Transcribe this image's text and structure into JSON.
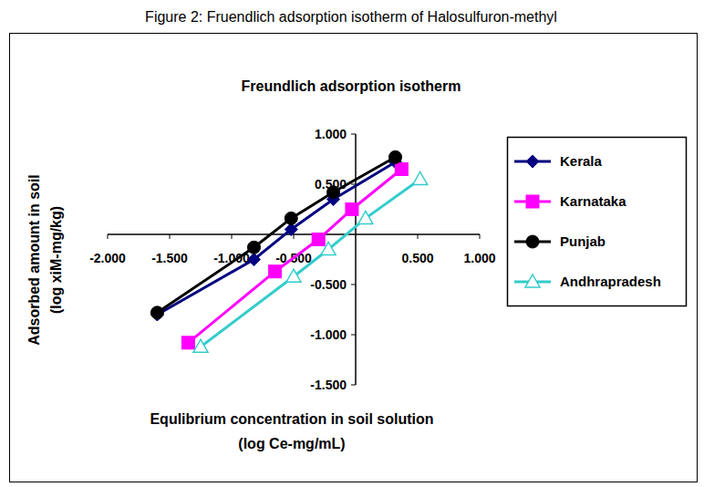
{
  "chart_data": {
    "type": "line",
    "caption": "Figure 2: Fruendlich adsorption isotherm of Halosulfuron-methyl",
    "title": "Freundlich adsorption isotherm",
    "xlabel": [
      "Equlibrium concentration in soil solution",
      "(log Ce-mg/mL)"
    ],
    "ylabel": [
      "Adsorbed amount in soil",
      "(log xiM-mg/kg)"
    ],
    "xlim": [
      -2,
      1
    ],
    "ylim": [
      -1.5,
      1
    ],
    "xticks": [
      {
        "value": -2,
        "label": "-2.000"
      },
      {
        "value": -1.5,
        "label": "-1.500"
      },
      {
        "value": -1,
        "label": "-1.000"
      },
      {
        "value": -0.5,
        "label": "-0.500"
      },
      {
        "value": 0.5,
        "label": "0.500"
      },
      {
        "value": 1,
        "label": "1.000"
      }
    ],
    "yticks": [
      {
        "value": -1.5,
        "label": "-1.500"
      },
      {
        "value": -1,
        "label": "-1.000"
      },
      {
        "value": -0.5,
        "label": "-0.500"
      },
      {
        "value": 0.5,
        "label": "0.500"
      },
      {
        "value": 1,
        "label": "1.000"
      }
    ],
    "grid": false,
    "legend": "right",
    "series": [
      {
        "name": "Kerala",
        "color": "#000080",
        "marker": "diamond",
        "line_style": "solid",
        "x": [
          -1.6,
          -0.82,
          -0.52,
          -0.18,
          0.32
        ],
        "values": [
          -0.8,
          -0.25,
          0.05,
          0.35,
          0.72
        ]
      },
      {
        "name": "Karnataka",
        "color": "#FF00FF",
        "marker": "square",
        "line_style": "solid",
        "x": [
          -1.35,
          -0.65,
          -0.3,
          -0.03,
          0.37
        ],
        "values": [
          -1.08,
          -0.37,
          -0.05,
          0.25,
          0.65
        ]
      },
      {
        "name": "Punjab",
        "color": "#000000",
        "marker": "circle",
        "line_style": "solid",
        "x": [
          -1.6,
          -0.82,
          -0.52,
          -0.18,
          0.32
        ],
        "values": [
          -0.78,
          -0.13,
          0.16,
          0.42,
          0.77
        ]
      },
      {
        "name": "Andhrapradesh",
        "color": "#33CCCC",
        "marker": "triangle-open",
        "line_style": "solid",
        "x": [
          -1.25,
          -0.5,
          -0.22,
          0.08,
          0.52
        ],
        "values": [
          -1.12,
          -0.42,
          -0.15,
          0.16,
          0.55
        ]
      }
    ]
  }
}
